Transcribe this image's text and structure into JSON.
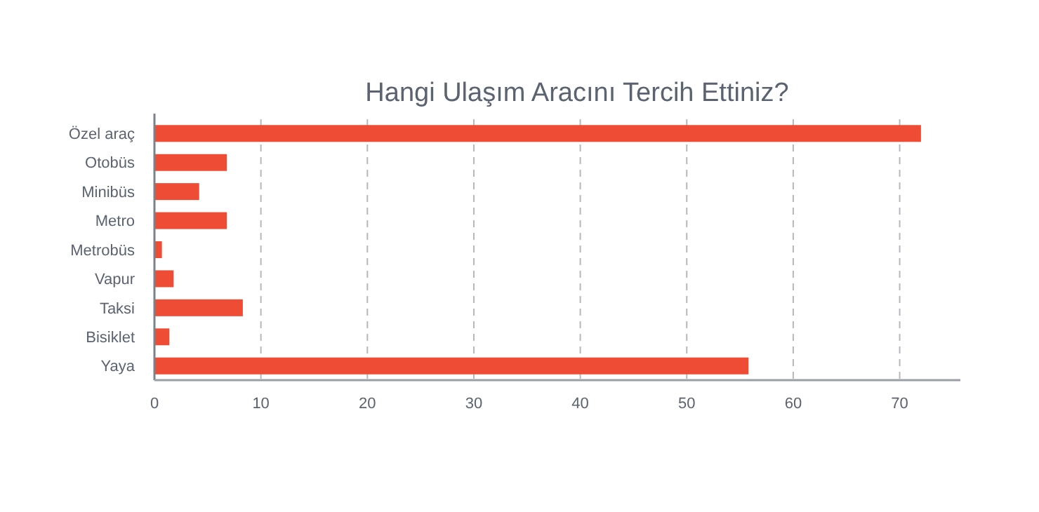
{
  "chart_data": {
    "type": "bar",
    "orientation": "horizontal",
    "title": "Hangi Ulaşım Aracını Tercih Ettiniz?",
    "categories": [
      "Özel araç",
      "Otobüs",
      "Minibüs",
      "Metro",
      "Metrobüs",
      "Vapur",
      "Taksi",
      "Bisiklet",
      "Yaya"
    ],
    "values": [
      72,
      6.8,
      4.2,
      6.8,
      0.7,
      1.8,
      8.3,
      1.4,
      55.8
    ],
    "color": "#ef4c35",
    "xlim": [
      0,
      75.7
    ],
    "xticks": [
      0,
      10,
      20,
      30,
      40,
      50,
      60,
      70
    ],
    "grid": "x"
  }
}
